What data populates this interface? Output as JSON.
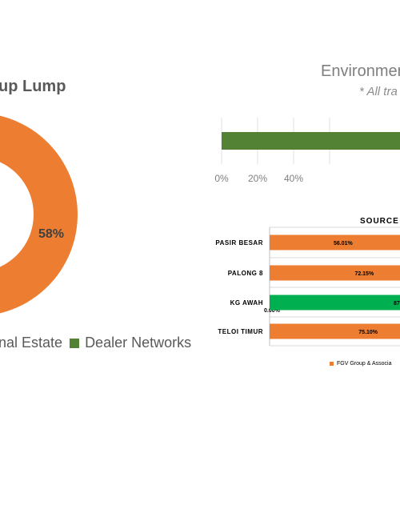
{
  "chart_data": [
    {
      "type": "pie",
      "title": "up Lump",
      "slices": [
        {
          "name": "nal Estate",
          "value": 58,
          "label": "58%",
          "color": "#ED7D31"
        },
        {
          "name": "Dealer Networks",
          "value": 42,
          "color": "#548235"
        }
      ],
      "legend": "bottom"
    },
    {
      "type": "bar",
      "orientation": "horizontal",
      "title": "Environmen",
      "subtitle": "* All tra",
      "values": [
        100
      ],
      "bar_color": "#548235",
      "x_ticks": [
        "0%",
        "20%",
        "40%"
      ],
      "xlim": [
        0,
        100
      ],
      "grid": true
    },
    {
      "type": "bar",
      "orientation": "horizontal",
      "stacked": true,
      "title": "SOURCE C",
      "categories": [
        "PASIR BESAR",
        "PALONG 8",
        "KG AWAH",
        "TELOI TIMUR"
      ],
      "series": [
        {
          "name": "FGV Group & Associa",
          "color": "#ED7D31",
          "values": [
            56.01,
            72.15,
            0.0,
            75.1
          ],
          "labels": [
            "56.01%",
            "72.15%",
            "0.00%",
            "75.10%"
          ]
        },
        {
          "color": "#00B050",
          "values": [
            null,
            null,
            87,
            null
          ],
          "labels": [
            "",
            "",
            "87",
            ""
          ]
        }
      ],
      "legend": "bottom"
    }
  ]
}
